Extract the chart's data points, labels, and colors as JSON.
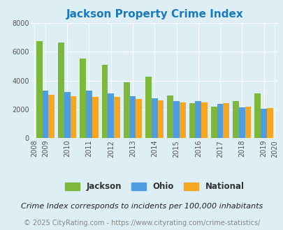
{
  "title": "Jackson Property Crime Index",
  "years": [
    2009,
    2010,
    2011,
    2012,
    2013,
    2014,
    2015,
    2016,
    2017,
    2018,
    2019
  ],
  "x_ticks": [
    2008,
    2009,
    2010,
    2011,
    2012,
    2013,
    2014,
    2015,
    2016,
    2017,
    2018,
    2019,
    2020
  ],
  "jackson": [
    6750,
    6620,
    5550,
    5100,
    3880,
    4280,
    2960,
    2420,
    2200,
    2580,
    3080
  ],
  "ohio": [
    3280,
    3200,
    3310,
    3090,
    2920,
    2760,
    2570,
    2560,
    2380,
    2130,
    2060
  ],
  "national": [
    3010,
    2930,
    2880,
    2850,
    2720,
    2600,
    2480,
    2450,
    2430,
    2200,
    2100
  ],
  "jackson_color": "#7db83a",
  "ohio_color": "#4d9de0",
  "national_color": "#f5a623",
  "title_color": "#1a7abf",
  "bg_color": "#ddeef5",
  "plot_bg_color": "#deeef5",
  "ylim": [
    0,
    8000
  ],
  "yticks": [
    0,
    2000,
    4000,
    6000,
    8000
  ],
  "note": "Crime Index corresponds to incidents per 100,000 inhabitants",
  "copyright": "© 2025 CityRating.com - https://www.cityrating.com/crime-statistics/",
  "title_fontsize": 11,
  "note_fontsize": 8,
  "copyright_fontsize": 7
}
